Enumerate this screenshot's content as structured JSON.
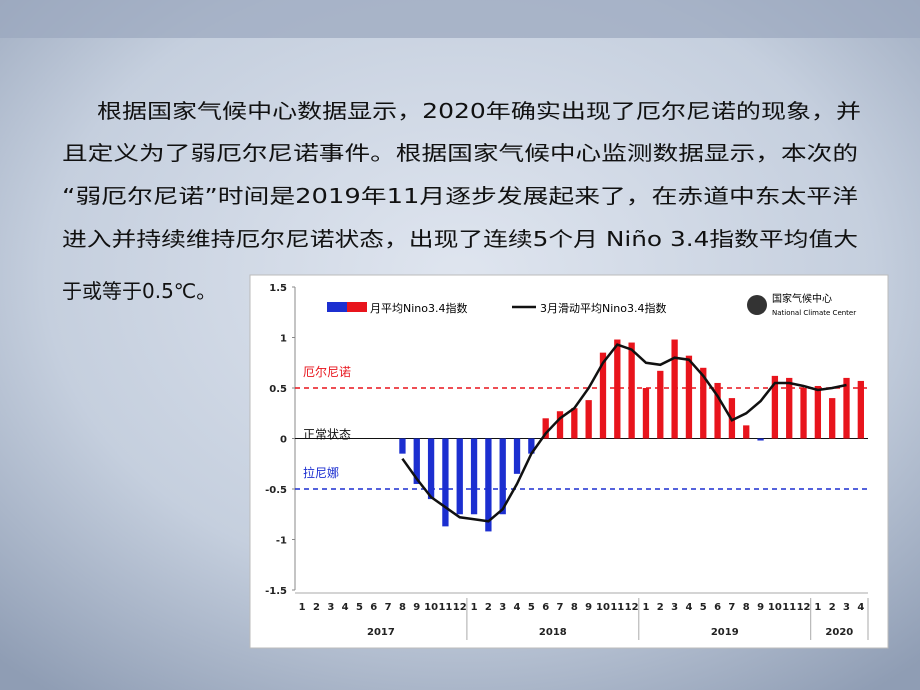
{
  "paragraph_lines": [
    "根据国家气候中心数据显示，2020年确实出现了厄尔尼诺的现象，并",
    "且定义为了弱厄尔尼诺事件。根据国家气候中心监测数据显示，本次的",
    "“弱厄尔尼诺”时间是2019年11月逐步发展起来了，在赤道中东太平洋",
    "进入并持续维持厄尔尼诺状态，出现了连续5个月 Niño 3.4指数平均值大",
    "于或等于0.5℃。"
  ],
  "chart_data": {
    "type": "bar",
    "logo": {
      "name": "国家气候中心",
      "english": "National Climate Center"
    },
    "categories": [
      "1",
      "2",
      "3",
      "4",
      "5",
      "6",
      "7",
      "8",
      "9",
      "10",
      "11",
      "12",
      "1",
      "2",
      "3",
      "4",
      "5",
      "6",
      "7",
      "8",
      "9",
      "10",
      "11",
      "12",
      "1",
      "2",
      "3",
      "4",
      "5",
      "6",
      "7",
      "8",
      "9",
      "10",
      "11",
      "12",
      "1",
      "2",
      "3",
      "4"
    ],
    "year_groups": [
      {
        "label": "2017",
        "months": 12
      },
      {
        "label": "2018",
        "months": 12
      },
      {
        "label": "2019",
        "months": 12
      },
      {
        "label": "2020",
        "months": 4
      }
    ],
    "series": [
      {
        "name": "月平均Nino3.4指数",
        "color": "#e8141c",
        "negative_color": "#1c2fd0",
        "values": [
          null,
          null,
          null,
          null,
          null,
          null,
          null,
          -0.15,
          -0.45,
          -0.6,
          -0.87,
          -0.75,
          -0.75,
          -0.92,
          -0.75,
          -0.35,
          -0.15,
          0.2,
          0.27,
          0.3,
          0.38,
          0.85,
          0.98,
          0.95,
          0.5,
          0.67,
          0.98,
          0.82,
          0.7,
          0.55,
          0.4,
          0.13,
          -0.02,
          0.62,
          0.6,
          0.5,
          0.52,
          0.4,
          0.6,
          0.57
        ]
      },
      {
        "name": "3月滑动平均Nino3.4指数",
        "color": "#111111",
        "type": "line",
        "values": [
          null,
          null,
          null,
          null,
          null,
          null,
          null,
          -0.2,
          -0.4,
          -0.58,
          -0.68,
          -0.78,
          -0.8,
          -0.82,
          -0.7,
          -0.45,
          -0.15,
          0.05,
          0.2,
          0.3,
          0.5,
          0.75,
          0.93,
          0.88,
          0.75,
          0.73,
          0.8,
          0.78,
          0.62,
          0.42,
          0.18,
          0.25,
          0.37,
          0.55,
          0.55,
          0.52,
          0.48,
          0.5,
          0.53,
          null
        ]
      }
    ],
    "reference_lines": [
      {
        "value": 0.5,
        "label": "厄尔尼诺",
        "color": "#e8141c",
        "dashed": true
      },
      {
        "value": 0,
        "label": "正常状态",
        "color": "#111111",
        "dashed": false
      },
      {
        "value": -0.5,
        "label": "拉尼娜",
        "color": "#1c2fd0",
        "dashed": true
      }
    ],
    "ylim": [
      -1.5,
      1.5
    ],
    "yticks": [
      -1.5,
      -1,
      -0.5,
      0,
      0.5,
      1,
      1.5
    ]
  }
}
